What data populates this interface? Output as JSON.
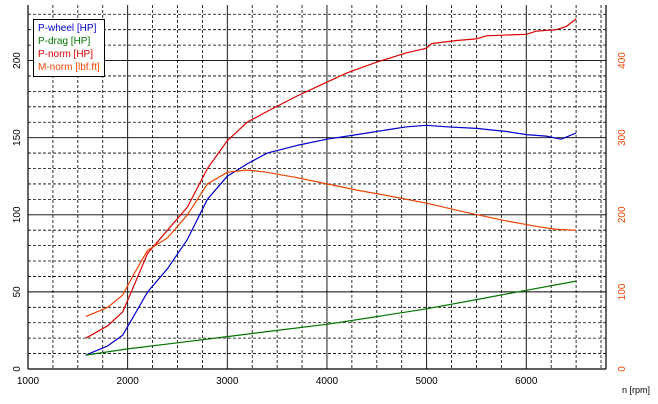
{
  "chart_data": {
    "type": "line",
    "xlabel": "n [rpm]",
    "xlim": [
      1000,
      6800
    ],
    "x_ticks": [
      "1000",
      "2000",
      "3000",
      "4000",
      "5000",
      "6000"
    ],
    "ylim": [
      0,
      236
    ],
    "y_ticks": [
      "0",
      "50",
      "100",
      "150",
      "200"
    ],
    "y2lim": [
      0,
      472
    ],
    "y2_ticks": [
      "0",
      "100",
      "200",
      "300",
      "400"
    ],
    "grid": true,
    "legend_position": "top-left",
    "series": [
      {
        "name": "P-wheel [HP]",
        "color": "#0000cc",
        "axis": "left",
        "x": [
          1580,
          1800,
          1950,
          2050,
          2200,
          2400,
          2600,
          2800,
          3000,
          3200,
          3400,
          3700,
          4000,
          4300,
          4600,
          4800,
          5000,
          5200,
          5500,
          5800,
          6000,
          6200,
          6350,
          6500
        ],
        "y": [
          9,
          15,
          22,
          33,
          50,
          65,
          84,
          110,
          125,
          133,
          140,
          145,
          149,
          152,
          155,
          157,
          158,
          157,
          156,
          154,
          152,
          151,
          149,
          153
        ]
      },
      {
        "name": "P-drag [HP]",
        "color": "#007700",
        "axis": "left",
        "x": [
          1580,
          2000,
          2500,
          3000,
          3500,
          4000,
          4500,
          5000,
          5500,
          6000,
          6500
        ],
        "y": [
          9,
          13,
          17,
          21,
          25,
          29,
          34,
          39,
          45,
          51,
          57
        ]
      },
      {
        "name": "P-norm [HP]",
        "color": "#dd0000",
        "axis": "left",
        "x": [
          1580,
          1800,
          1950,
          2050,
          2200,
          2400,
          2600,
          2800,
          3000,
          3200,
          3400,
          3700,
          4000,
          4200,
          4500,
          4800,
          5000,
          5050,
          5300,
          5500,
          5600,
          6000,
          6100,
          6300,
          6400,
          6500
        ],
        "y": [
          20,
          28,
          37,
          52,
          75,
          90,
          105,
          130,
          148,
          160,
          167,
          177,
          186,
          192,
          199,
          205,
          208,
          211,
          213,
          214,
          216,
          217,
          219,
          220,
          222,
          227
        ]
      },
      {
        "name": "M-norm [lbf.ft]",
        "color": "#ee4400",
        "axis": "right",
        "x": [
          1580,
          1800,
          1950,
          2050,
          2200,
          2400,
          2600,
          2800,
          3000,
          3200,
          3400,
          3700,
          4000,
          4300,
          4600,
          5000,
          5400,
          5800,
          6100,
          6300,
          6500
        ],
        "y": [
          68,
          80,
          96,
          120,
          154,
          170,
          200,
          240,
          255,
          258,
          255,
          248,
          240,
          232,
          225,
          215,
          203,
          192,
          185,
          181,
          180
        ]
      }
    ]
  }
}
